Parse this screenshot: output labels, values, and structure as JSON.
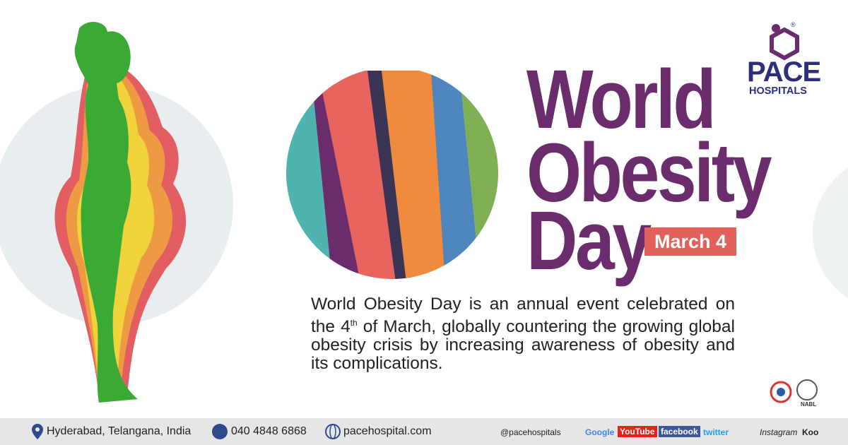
{
  "logo": {
    "name": "PACE",
    "subtitle": "HOSPITALS",
    "mark": "®"
  },
  "title": {
    "line1": "World",
    "line2": "Obesity",
    "line3": "Day",
    "date": "March 4"
  },
  "description": {
    "before": "World Obesity Day is an annual event celebrated on the 4",
    "superscript": "th",
    "after": " of March, globally countering the growing global obesity crisis by increasing awareness of obesity and its complications."
  },
  "badges": [
    "NABL"
  ],
  "footer": {
    "location": "Hyderabad, Telangana, India",
    "phone": "040 4848 6868",
    "website": "pacehospital.com",
    "handle": "@pacehospitals",
    "socials": [
      "Google",
      "YouTube",
      "facebook",
      "twitter",
      "Instagram",
      "Koo"
    ]
  }
}
